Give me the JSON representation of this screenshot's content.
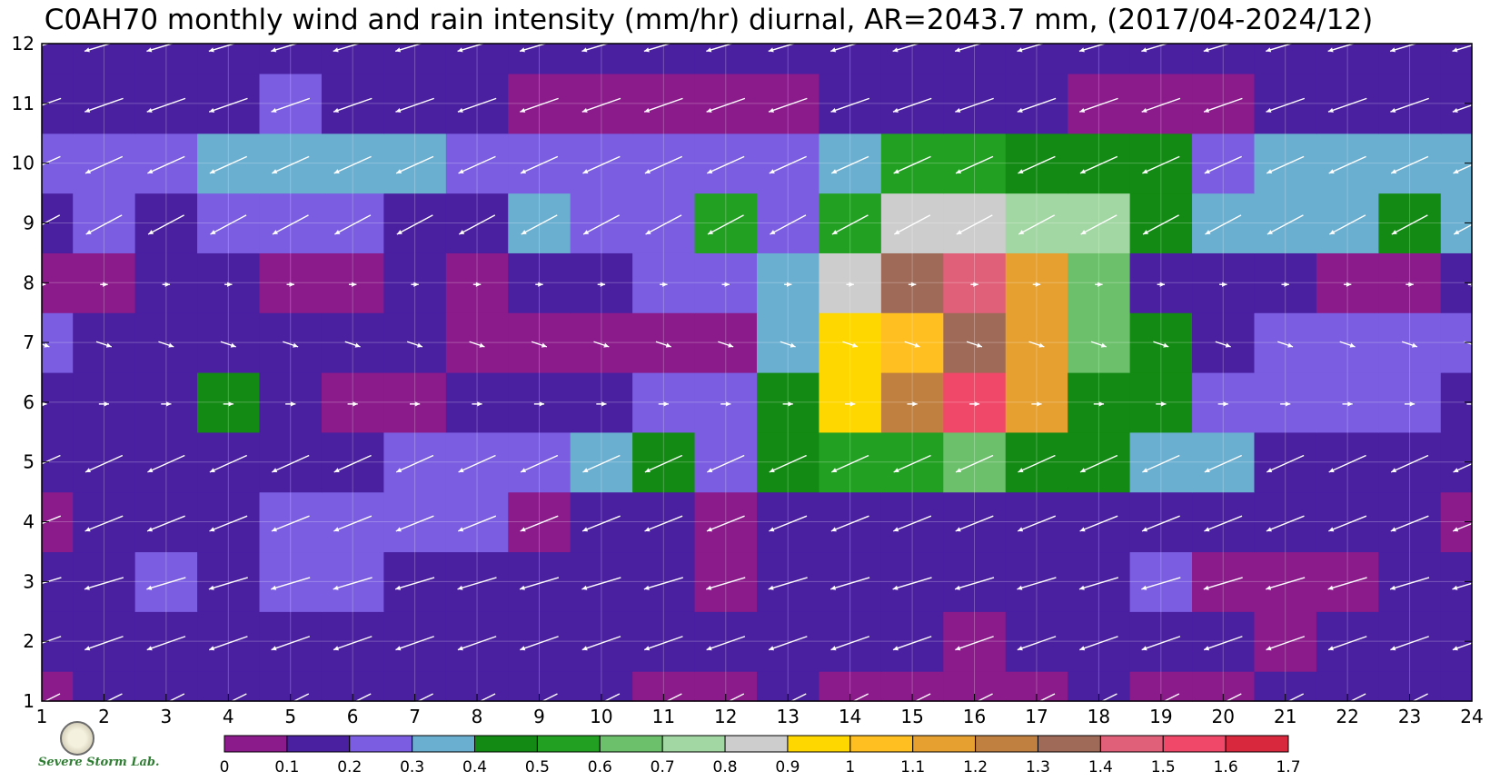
{
  "chart_data": {
    "type": "heatmap",
    "subtype": "filled-contour with wind vectors",
    "title": "C0AH70 monthly wind and rain intensity (mm/hr) diurnal, AR=2043.7 mm, (2017/04-2024/12)",
    "x_ticks": [
      "1",
      "2",
      "3",
      "4",
      "5",
      "6",
      "7",
      "8",
      "9",
      "10",
      "11",
      "12",
      "13",
      "14",
      "15",
      "16",
      "17",
      "18",
      "19",
      "20",
      "21",
      "22",
      "23",
      "24"
    ],
    "y_ticks": [
      "1",
      "2",
      "3",
      "4",
      "5",
      "6",
      "7",
      "8",
      "9",
      "10",
      "11",
      "12"
    ],
    "xlim": [
      1,
      24
    ],
    "ylim": [
      1,
      12
    ],
    "grid": true,
    "colorbar": {
      "position": "bottom",
      "tick_labels": [
        "0",
        "0.1",
        "0.2",
        "0.3",
        "0.4",
        "0.5",
        "0.6",
        "0.7",
        "0.8",
        "0.9",
        "1",
        "1.1",
        "1.2",
        "1.3",
        "1.4",
        "1.5",
        "1.6",
        "1.7"
      ],
      "colors": [
        "#8b1a8b",
        "#4a1fa0",
        "#7a5de0",
        "#6aaed0",
        "#138a13",
        "#22a022",
        "#6cc06c",
        "#a2d6a2",
        "#cdcdcd",
        "#ffd700",
        "#ffbf20",
        "#e6a030",
        "#c08040",
        "#a06a58",
        "#e0607a",
        "#f04868",
        "#d8283e"
      ]
    },
    "series": [
      {
        "values_z": [
          [
            0.05,
            0.15,
            0.15,
            0.15,
            0.15,
            0.15,
            0.15,
            0.15,
            0.15,
            0.15,
            0.05,
            0.05,
            0.15,
            0.05,
            0.05,
            0.05,
            0.05,
            0.15,
            0.05,
            0.05,
            0.15,
            0.15,
            0.15,
            0.15
          ],
          [
            0.15,
            0.15,
            0.15,
            0.15,
            0.15,
            0.15,
            0.15,
            0.15,
            0.15,
            0.15,
            0.15,
            0.15,
            0.15,
            0.15,
            0.15,
            0.05,
            0.15,
            0.15,
            0.15,
            0.15,
            0.05,
            0.15,
            0.15,
            0.15
          ],
          [
            0.15,
            0.15,
            0.25,
            0.15,
            0.25,
            0.25,
            0.15,
            0.15,
            0.15,
            0.15,
            0.15,
            0.05,
            0.15,
            0.15,
            0.15,
            0.15,
            0.15,
            0.15,
            0.25,
            0.05,
            0.05,
            0.05,
            0.15,
            0.15
          ],
          [
            0.05,
            0.15,
            0.15,
            0.15,
            0.25,
            0.25,
            0.25,
            0.25,
            0.05,
            0.15,
            0.15,
            0.05,
            0.15,
            0.15,
            0.15,
            0.15,
            0.15,
            0.15,
            0.15,
            0.15,
            0.15,
            0.15,
            0.15,
            0.05
          ],
          [
            0.15,
            0.15,
            0.15,
            0.15,
            0.15,
            0.15,
            0.25,
            0.25,
            0.25,
            0.35,
            0.45,
            0.25,
            0.45,
            0.55,
            0.55,
            0.65,
            0.45,
            0.45,
            0.35,
            0.35,
            0.15,
            0.15,
            0.15,
            0.15
          ],
          [
            0.15,
            0.15,
            0.15,
            0.45,
            0.15,
            0.05,
            0.05,
            0.15,
            0.15,
            0.15,
            0.25,
            0.25,
            0.45,
            0.95,
            1.25,
            1.55,
            1.15,
            0.45,
            0.45,
            0.25,
            0.25,
            0.25,
            0.25,
            0.15
          ],
          [
            0.25,
            0.15,
            0.15,
            0.15,
            0.15,
            0.15,
            0.15,
            0.05,
            0.05,
            0.05,
            0.05,
            0.05,
            0.35,
            0.95,
            1.05,
            1.35,
            1.15,
            0.65,
            0.45,
            0.15,
            0.25,
            0.25,
            0.25,
            0.25
          ],
          [
            0.05,
            0.05,
            0.15,
            0.15,
            0.05,
            0.05,
            0.15,
            0.05,
            0.15,
            0.15,
            0.25,
            0.25,
            0.35,
            0.85,
            1.35,
            1.45,
            1.15,
            0.65,
            0.15,
            0.15,
            0.15,
            0.05,
            0.05,
            0.15
          ],
          [
            0.15,
            0.25,
            0.15,
            0.25,
            0.25,
            0.25,
            0.15,
            0.15,
            0.35,
            0.25,
            0.25,
            0.55,
            0.25,
            0.55,
            0.85,
            0.85,
            0.75,
            0.75,
            0.45,
            0.35,
            0.35,
            0.35,
            0.45,
            0.35
          ],
          [
            0.25,
            0.25,
            0.25,
            0.35,
            0.35,
            0.35,
            0.35,
            0.25,
            0.25,
            0.25,
            0.25,
            0.25,
            0.25,
            0.35,
            0.55,
            0.55,
            0.45,
            0.45,
            0.45,
            0.25,
            0.35,
            0.35,
            0.35,
            0.35
          ],
          [
            0.15,
            0.15,
            0.15,
            0.15,
            0.25,
            0.15,
            0.15,
            0.15,
            0.05,
            0.05,
            0.05,
            0.05,
            0.05,
            0.15,
            0.15,
            0.15,
            0.15,
            0.05,
            0.05,
            0.05,
            0.15,
            0.15,
            0.15,
            0.15
          ],
          [
            0.15,
            0.15,
            0.15,
            0.15,
            0.15,
            0.15,
            0.15,
            0.15,
            0.15,
            0.15,
            0.15,
            0.15,
            0.15,
            0.15,
            0.15,
            0.15,
            0.15,
            0.15,
            0.15,
            0.15,
            0.15,
            0.15,
            0.15,
            0.15
          ]
        ]
      }
    ],
    "wind_vectors": {
      "color": "#ffffff",
      "dir_by_month": [
        [
          -2,
          -1
        ],
        [
          -2,
          -0.7
        ],
        [
          -2,
          -0.6
        ],
        [
          -2,
          -0.8
        ],
        [
          -2,
          -0.9
        ],
        [
          0.4,
          0
        ],
        [
          0.6,
          -0.2
        ],
        [
          0.3,
          0
        ],
        [
          -1.5,
          -0.8
        ],
        [
          -2,
          -0.9
        ],
        [
          -2,
          -0.7
        ],
        [
          -2,
          -0.6
        ]
      ]
    }
  },
  "logo": {
    "lab_text": "Severe Storm Lab."
  }
}
